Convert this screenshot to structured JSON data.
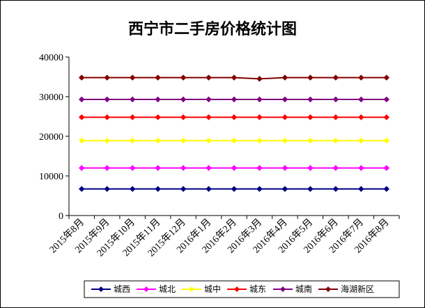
{
  "chart_data": {
    "type": "line",
    "title": "西宁市二手房价格统计图",
    "xlabel": "",
    "ylabel": "",
    "ylim": [
      0,
      40000
    ],
    "yticks": [
      "0",
      "10000",
      "20000",
      "30000",
      "40000"
    ],
    "categories": [
      "2015年8月",
      "2015年9月",
      "2015年10月",
      "2015年11月",
      "2015年12月",
      "2016年1月",
      "2016年2月",
      "2016年3月",
      "2016年4月",
      "2016年5月",
      "2016年6月",
      "2016年7月",
      "2016年8月"
    ],
    "grid": false,
    "legend": "bottom",
    "series": [
      {
        "name": "城西",
        "color": "#000080",
        "values": [
          6700,
          6700,
          6700,
          6700,
          6700,
          6700,
          6700,
          6700,
          6700,
          6700,
          6700,
          6700,
          6700
        ]
      },
      {
        "name": "城北",
        "color": "#FF00FF",
        "values": [
          12000,
          12000,
          12000,
          12000,
          12000,
          12000,
          12000,
          12000,
          12000,
          12000,
          12000,
          12000,
          12000
        ]
      },
      {
        "name": "城中",
        "color": "#FFFF00",
        "values": [
          18900,
          18900,
          18900,
          18900,
          18900,
          18900,
          18900,
          18900,
          18900,
          18900,
          18900,
          18900,
          18900
        ]
      },
      {
        "name": "城东",
        "color": "#FF0000",
        "values": [
          24800,
          24800,
          24800,
          24800,
          24800,
          24800,
          24800,
          24800,
          24800,
          24800,
          24800,
          24800,
          24800
        ]
      },
      {
        "name": "城南",
        "color": "#800080",
        "values": [
          29300,
          29300,
          29300,
          29300,
          29300,
          29300,
          29300,
          29300,
          29300,
          29300,
          29300,
          29300,
          29300
        ]
      },
      {
        "name": "海湖新区",
        "color": "#800000",
        "values": [
          34800,
          34800,
          34800,
          34800,
          34800,
          34800,
          34800,
          34500,
          34800,
          34800,
          34800,
          34800,
          34800
        ]
      }
    ]
  }
}
